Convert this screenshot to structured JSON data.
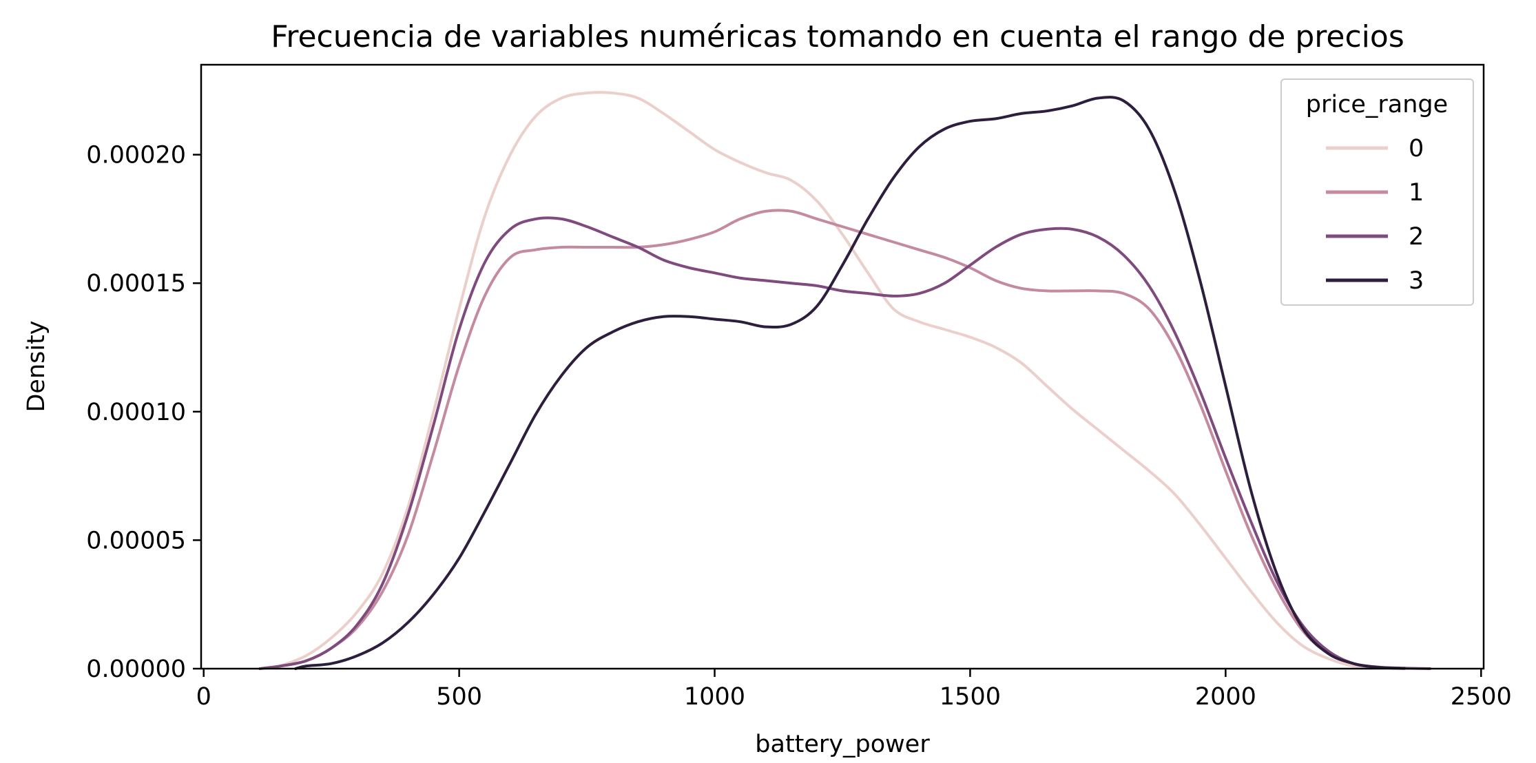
{
  "chart_data": {
    "type": "line",
    "title": "Frecuencia de variables numéricas tomando en cuenta el rango de precios",
    "xlabel": "battery_power",
    "ylabel": "Density",
    "xlim": [
      -5,
      2505
    ],
    "ylim": [
      0,
      0.000235
    ],
    "xticks": [
      0,
      500,
      1000,
      1500,
      2000,
      2500
    ],
    "xtick_labels": [
      "0",
      "500",
      "1000",
      "1500",
      "2000",
      "2500"
    ],
    "yticks": [
      0,
      5e-05,
      0.0001,
      0.00015,
      0.0002
    ],
    "ytick_labels": [
      "0.00000",
      "0.00005",
      "0.00010",
      "0.00015",
      "0.00020"
    ],
    "grid": false,
    "legend": {
      "title": "price_range",
      "position": "top-right"
    },
    "series": [
      {
        "name": "0",
        "color": "#ebcfca",
        "points": [
          [
            150,
            1e-06
          ],
          [
            200,
            5e-06
          ],
          [
            250,
            1.2e-05
          ],
          [
            300,
            2.2e-05
          ],
          [
            350,
            3.7e-05
          ],
          [
            400,
            6.3e-05
          ],
          [
            450,
            0.0001
          ],
          [
            500,
            0.00014
          ],
          [
            550,
            0.000176
          ],
          [
            600,
            0.0002
          ],
          [
            650,
            0.000215
          ],
          [
            700,
            0.000222
          ],
          [
            750,
            0.000224
          ],
          [
            800,
            0.000224
          ],
          [
            850,
            0.000222
          ],
          [
            900,
            0.000216
          ],
          [
            950,
            0.000209
          ],
          [
            1000,
            0.000202
          ],
          [
            1050,
            0.000197
          ],
          [
            1100,
            0.000193
          ],
          [
            1150,
            0.00019
          ],
          [
            1200,
            0.000182
          ],
          [
            1250,
            0.000169
          ],
          [
            1300,
            0.000154
          ],
          [
            1350,
            0.00014
          ],
          [
            1400,
            0.000135
          ],
          [
            1450,
            0.000132
          ],
          [
            1500,
            0.000129
          ],
          [
            1550,
            0.000125
          ],
          [
            1600,
            0.000119
          ],
          [
            1650,
            0.00011
          ],
          [
            1700,
            0.000101
          ],
          [
            1750,
            9.3e-05
          ],
          [
            1800,
            8.5e-05
          ],
          [
            1850,
            7.7e-05
          ],
          [
            1900,
            6.8e-05
          ],
          [
            1950,
            5.6e-05
          ],
          [
            2000,
            4.3e-05
          ],
          [
            2050,
            3e-05
          ],
          [
            2100,
            1.8e-05
          ],
          [
            2150,
            9e-06
          ],
          [
            2200,
            4e-06
          ],
          [
            2250,
            1e-06
          ],
          [
            2300,
            3e-07
          ]
        ]
      },
      {
        "name": "1",
        "color": "#c48aa0",
        "points": [
          [
            110,
            0.0
          ],
          [
            150,
            1e-06
          ],
          [
            200,
            3e-06
          ],
          [
            250,
            8e-06
          ],
          [
            300,
            1.6e-05
          ],
          [
            350,
            3e-05
          ],
          [
            400,
            5.2e-05
          ],
          [
            450,
            8.4e-05
          ],
          [
            500,
            0.000118
          ],
          [
            550,
            0.000145
          ],
          [
            600,
            0.00016
          ],
          [
            650,
            0.000163
          ],
          [
            700,
            0.000164
          ],
          [
            750,
            0.000164
          ],
          [
            800,
            0.000164
          ],
          [
            850,
            0.000164
          ],
          [
            900,
            0.000165
          ],
          [
            950,
            0.000167
          ],
          [
            1000,
            0.00017
          ],
          [
            1050,
            0.000175
          ],
          [
            1100,
            0.000178
          ],
          [
            1150,
            0.000178
          ],
          [
            1200,
            0.000175
          ],
          [
            1250,
            0.000172
          ],
          [
            1300,
            0.000169
          ],
          [
            1350,
            0.000166
          ],
          [
            1400,
            0.000163
          ],
          [
            1450,
            0.00016
          ],
          [
            1500,
            0.000156
          ],
          [
            1550,
            0.000151
          ],
          [
            1600,
            0.000148
          ],
          [
            1650,
            0.000147
          ],
          [
            1700,
            0.000147
          ],
          [
            1750,
            0.000147
          ],
          [
            1800,
            0.000146
          ],
          [
            1850,
            0.00014
          ],
          [
            1900,
            0.000125
          ],
          [
            1950,
            0.000103
          ],
          [
            2000,
            7.7e-05
          ],
          [
            2050,
            5.2e-05
          ],
          [
            2100,
            3.1e-05
          ],
          [
            2150,
            1.5e-05
          ],
          [
            2200,
            6e-06
          ],
          [
            2250,
            2e-06
          ],
          [
            2300,
            5e-07
          ],
          [
            2350,
            1e-07
          ]
        ]
      },
      {
        "name": "2",
        "color": "#7f4a7d",
        "points": [
          [
            110,
            0.0
          ],
          [
            150,
            1e-06
          ],
          [
            200,
            3e-06
          ],
          [
            250,
            8e-06
          ],
          [
            300,
            1.7e-05
          ],
          [
            350,
            3.3e-05
          ],
          [
            400,
            6e-05
          ],
          [
            450,
            9.5e-05
          ],
          [
            500,
            0.000132
          ],
          [
            550,
            0.000158
          ],
          [
            600,
            0.000171
          ],
          [
            650,
            0.000175
          ],
          [
            700,
            0.000175
          ],
          [
            750,
            0.000172
          ],
          [
            800,
            0.000168
          ],
          [
            850,
            0.000164
          ],
          [
            900,
            0.000159
          ],
          [
            950,
            0.000156
          ],
          [
            1000,
            0.000154
          ],
          [
            1050,
            0.000152
          ],
          [
            1100,
            0.000151
          ],
          [
            1150,
            0.00015
          ],
          [
            1200,
            0.000149
          ],
          [
            1250,
            0.000147
          ],
          [
            1300,
            0.000146
          ],
          [
            1350,
            0.000145
          ],
          [
            1400,
            0.000146
          ],
          [
            1450,
            0.00015
          ],
          [
            1500,
            0.000157
          ],
          [
            1550,
            0.000164
          ],
          [
            1600,
            0.000169
          ],
          [
            1650,
            0.000171
          ],
          [
            1700,
            0.000171
          ],
          [
            1750,
            0.000168
          ],
          [
            1800,
            0.000161
          ],
          [
            1850,
            0.000149
          ],
          [
            1900,
            0.000131
          ],
          [
            1950,
            0.000108
          ],
          [
            2000,
            8.2e-05
          ],
          [
            2050,
            5.7e-05
          ],
          [
            2100,
            3.4e-05
          ],
          [
            2150,
            1.7e-05
          ],
          [
            2200,
            7e-06
          ],
          [
            2250,
            2e-06
          ],
          [
            2300,
            6e-07
          ],
          [
            2350,
            2e-07
          ],
          [
            2400,
            0.0
          ]
        ]
      },
      {
        "name": "3",
        "color": "#2d1e3e",
        "points": [
          [
            180,
            0.0
          ],
          [
            200,
            1e-06
          ],
          [
            250,
            2e-06
          ],
          [
            300,
            5e-06
          ],
          [
            350,
            1e-05
          ],
          [
            400,
            1.8e-05
          ],
          [
            450,
            2.9e-05
          ],
          [
            500,
            4.3e-05
          ],
          [
            550,
            6.1e-05
          ],
          [
            600,
            8e-05
          ],
          [
            650,
            9.9e-05
          ],
          [
            700,
            0.000114
          ],
          [
            750,
            0.000125
          ],
          [
            800,
            0.000131
          ],
          [
            850,
            0.000135
          ],
          [
            900,
            0.000137
          ],
          [
            950,
            0.000137
          ],
          [
            1000,
            0.000136
          ],
          [
            1050,
            0.000135
          ],
          [
            1100,
            0.000133
          ],
          [
            1150,
            0.000134
          ],
          [
            1200,
            0.000141
          ],
          [
            1250,
            0.000157
          ],
          [
            1300,
            0.000175
          ],
          [
            1350,
            0.000191
          ],
          [
            1400,
            0.000203
          ],
          [
            1450,
            0.00021
          ],
          [
            1500,
            0.000213
          ],
          [
            1550,
            0.000214
          ],
          [
            1600,
            0.000216
          ],
          [
            1650,
            0.000217
          ],
          [
            1700,
            0.000219
          ],
          [
            1750,
            0.000222
          ],
          [
            1800,
            0.000221
          ],
          [
            1850,
            0.00021
          ],
          [
            1900,
            0.000186
          ],
          [
            1950,
            0.000151
          ],
          [
            2000,
            0.00011
          ],
          [
            2050,
            6.9e-05
          ],
          [
            2100,
            3.7e-05
          ],
          [
            2150,
            1.6e-05
          ],
          [
            2200,
            6e-06
          ],
          [
            2250,
            2e-06
          ],
          [
            2300,
            5e-07
          ],
          [
            2350,
            1e-07
          ]
        ]
      }
    ]
  }
}
